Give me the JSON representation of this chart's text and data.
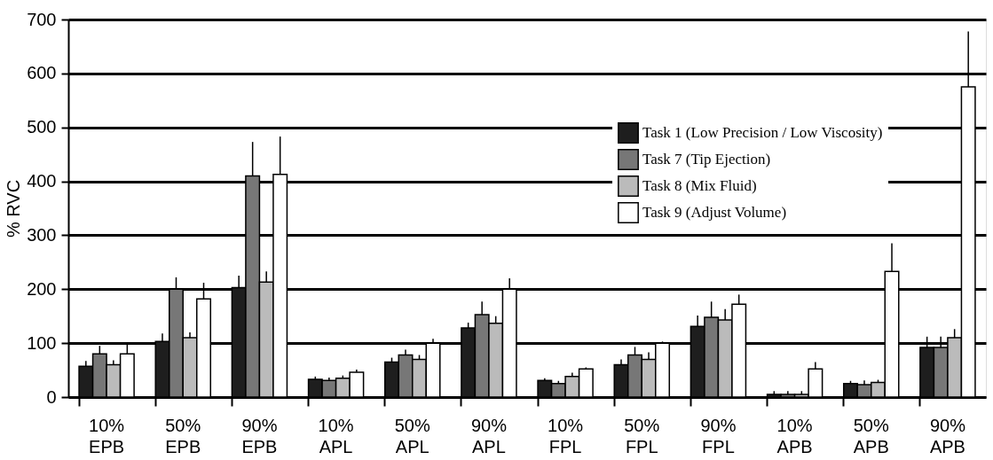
{
  "chart_data": {
    "type": "bar",
    "ylabel": "% RVC",
    "categories": [
      "10% EPB",
      "50% EPB",
      "90% EPB",
      "10% APL",
      "50% APL",
      "90% APL",
      "10% FPL",
      "50% FPL",
      "90% FPL",
      "10% APB",
      "50% APB",
      "90% APB"
    ],
    "series": [
      {
        "name": "Task 1 (Low Precision / Low Viscosity)",
        "color": "#1e1e1e",
        "values": [
          57,
          103,
          203,
          33,
          65,
          128,
          31,
          60,
          131,
          5,
          25,
          92
        ],
        "errors": [
          [
            57,
            67
          ],
          [
            103,
            118
          ],
          [
            203,
            225
          ],
          [
            33,
            38
          ],
          [
            65,
            73
          ],
          [
            128,
            138
          ],
          [
            31,
            35
          ],
          [
            60,
            70
          ],
          [
            131,
            151
          ],
          [
            5,
            11
          ],
          [
            25,
            30
          ],
          [
            92,
            112
          ]
        ]
      },
      {
        "name": "Task 7 (Tip Ejection)",
        "color": "#777777",
        "values": [
          80,
          200,
          410,
          31,
          78,
          153,
          25,
          78,
          148,
          5,
          23,
          92
        ],
        "errors": [
          [
            80,
            95
          ],
          [
            200,
            222
          ],
          [
            410,
            473
          ],
          [
            31,
            36
          ],
          [
            78,
            88
          ],
          [
            153,
            177
          ],
          [
            25,
            30
          ],
          [
            78,
            93
          ],
          [
            148,
            177
          ],
          [
            5,
            11
          ],
          [
            23,
            31
          ],
          [
            92,
            112
          ]
        ]
      },
      {
        "name": "Task 8 (Mix Fluid)",
        "color": "#bbbbbb",
        "values": [
          60,
          110,
          213,
          35,
          70,
          137,
          38,
          70,
          143,
          5,
          27,
          110
        ],
        "errors": [
          [
            60,
            68
          ],
          [
            110,
            120
          ],
          [
            213,
            233
          ],
          [
            35,
            40
          ],
          [
            70,
            78
          ],
          [
            137,
            150
          ],
          [
            38,
            45
          ],
          [
            70,
            83
          ],
          [
            143,
            163
          ],
          [
            5,
            11
          ],
          [
            27,
            32
          ],
          [
            110,
            126
          ]
        ]
      },
      {
        "name": "Task 9 (Adjust Volume)",
        "color": "#ffffff",
        "values": [
          80,
          182,
          413,
          46,
          100,
          200,
          52,
          100,
          172,
          52,
          233,
          575
        ],
        "errors": [
          [
            80,
            98
          ],
          [
            182,
            212
          ],
          [
            413,
            483
          ],
          [
            46,
            51
          ],
          [
            100,
            108
          ],
          [
            200,
            220
          ],
          [
            52,
            55
          ],
          [
            100,
            103
          ],
          [
            172,
            190
          ],
          [
            52,
            65
          ],
          [
            233,
            285
          ],
          [
            575,
            678
          ]
        ]
      }
    ],
    "ylim": [
      0,
      700
    ],
    "yticks": [
      0,
      100,
      200,
      300,
      400,
      500,
      600,
      700
    ],
    "grid": "y",
    "legend": "top right"
  }
}
